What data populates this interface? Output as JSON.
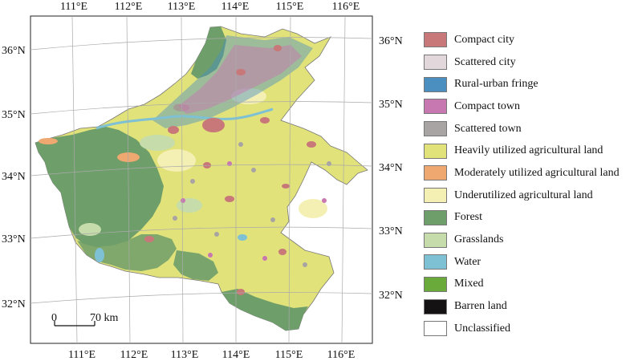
{
  "map": {
    "top_lon_labels": [
      "111°E",
      "112°E",
      "113°E",
      "114°E",
      "115°E",
      "116°E"
    ],
    "bottom_lon_labels": [
      "111°E",
      "112°E",
      "113°E",
      "114°E",
      "115°E",
      "116°E"
    ],
    "left_lat_labels": [
      "36°N",
      "35°N",
      "34°N",
      "33°N",
      "32°N"
    ],
    "right_lat_labels": [
      "36°N",
      "35°N",
      "34°N",
      "33°N",
      "32°N"
    ],
    "scale_bar": {
      "start_label": "0",
      "end_label": "70 km"
    }
  },
  "legend": {
    "items": [
      {
        "label": "Compact city",
        "color": "#c87878"
      },
      {
        "label": "Scattered city",
        "color": "#e2d8dc"
      },
      {
        "label": "Rural-urban fringe",
        "color": "#4a8fc0"
      },
      {
        "label": "Compact town",
        "color": "#c878b0"
      },
      {
        "label": "Scattered town",
        "color": "#a8a4a4"
      },
      {
        "label": "Heavily utilized agricultural land",
        "color": "#e2e27a"
      },
      {
        "label": "Moderately utilized agricultural land",
        "color": "#eea870"
      },
      {
        "label": "Underutilized agricultural land",
        "color": "#f4f0b4"
      },
      {
        "label": "Forest",
        "color": "#6e9e6a"
      },
      {
        "label": "Grasslands",
        "color": "#c6dcaa"
      },
      {
        "label": "Water",
        "color": "#7ec0d4"
      },
      {
        "label": "Mixed",
        "color": "#6aaa3a"
      },
      {
        "label": "Barren land",
        "color": "#141212"
      },
      {
        "label": "Unclassified",
        "color": "#ffffff"
      }
    ]
  }
}
